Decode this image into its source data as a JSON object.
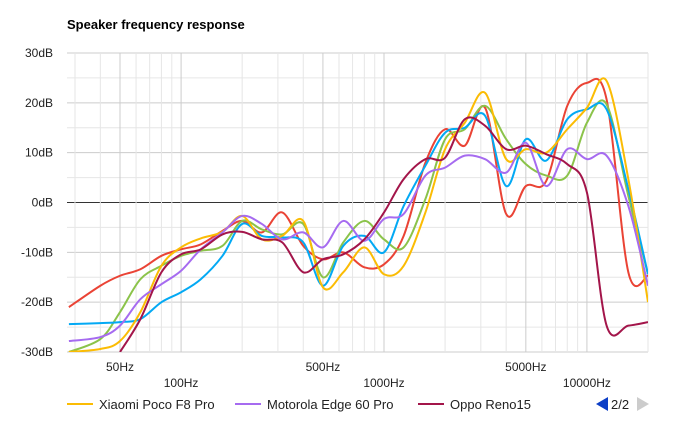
{
  "chart_data": {
    "type": "line",
    "title": "Speaker frequency response",
    "xlabel": "",
    "ylabel": "",
    "xscale": "log",
    "xlim": [
      27.4,
      20000
    ],
    "ylim": [
      -30,
      30
    ],
    "grid": true,
    "y_ticks": [
      {
        "value": 30,
        "label": "30dB"
      },
      {
        "value": 20,
        "label": "20dB"
      },
      {
        "value": 10,
        "label": "10dB"
      },
      {
        "value": 0,
        "label": "0dB"
      },
      {
        "value": -10,
        "label": "-10dB"
      },
      {
        "value": -20,
        "label": "-20dB"
      },
      {
        "value": -30,
        "label": "-30dB"
      }
    ],
    "x_ticks": [
      {
        "value": 50,
        "label": "50Hz",
        "row": 1
      },
      {
        "value": 100,
        "label": "100Hz",
        "row": 2
      },
      {
        "value": 500,
        "label": "500Hz",
        "row": 1
      },
      {
        "value": 1000,
        "label": "1000Hz",
        "row": 2
      },
      {
        "value": 5000,
        "label": "5000Hz",
        "row": 1
      },
      {
        "value": 10000,
        "label": "10000Hz",
        "row": 2
      }
    ],
    "x": [
      28,
      40,
      50,
      63,
      80,
      100,
      125,
      160,
      200,
      250,
      315,
      400,
      500,
      630,
      800,
      1000,
      1250,
      1600,
      2000,
      2500,
      3150,
      4000,
      5000,
      6300,
      8000,
      10000,
      12500,
      16000,
      20000
    ],
    "series": [
      {
        "name": "",
        "color": "#ea4335",
        "values": [
          -21,
          -16.7,
          -14.7,
          -13.4,
          -10.7,
          -9.4,
          -8.4,
          -5.7,
          -3.7,
          -6,
          -2,
          -8.7,
          -11.4,
          -10,
          -13,
          -12.4,
          -6.7,
          8,
          14.7,
          11.4,
          19,
          -2.3,
          3.3,
          4.3,
          19.4,
          24,
          20.7,
          -14,
          -14.7
        ]
      },
      {
        "name": "",
        "color": "#8bc34a",
        "values": [
          -30,
          -27.4,
          -22,
          -15.4,
          -12.7,
          -10.7,
          -9.7,
          -8.7,
          -3.7,
          -5.4,
          -6.4,
          -4.3,
          -15,
          -8,
          -3.7,
          -7.4,
          -9,
          0.7,
          12.7,
          14.7,
          19.4,
          12.7,
          7.7,
          5.4,
          5.4,
          16,
          19.7,
          1.3,
          -14.4
        ]
      },
      {
        "name": "",
        "color": "#03a9f4",
        "values": [
          -24.4,
          -24.2,
          -24,
          -23.4,
          -20,
          -18,
          -15.4,
          -10.7,
          -4.3,
          -6.7,
          -7,
          -8,
          -16.7,
          -8.7,
          -6.7,
          -10,
          -0.7,
          7.4,
          14,
          15,
          17.4,
          3.3,
          12.7,
          8.4,
          16.7,
          18.7,
          18.7,
          2.7,
          -14.4
        ]
      },
      {
        "name": "Xiaomi Poco F8 Pro",
        "color": "#fbbc04",
        "values": [
          -30,
          -29.4,
          -27.8,
          -22,
          -12.7,
          -9,
          -7.2,
          -5.9,
          -2.7,
          -7.4,
          -6.7,
          -3.7,
          -17,
          -14,
          -9,
          -14.4,
          -12.7,
          -2,
          10.7,
          16,
          22,
          8.7,
          10.7,
          10,
          14.7,
          19,
          24.4,
          4.7,
          -20
        ]
      },
      {
        "name": "Motorola Edge 60 Pro",
        "color": "#a66bf0",
        "values": [
          -27.8,
          -27,
          -24.7,
          -19.4,
          -16.4,
          -13.7,
          -9.4,
          -6,
          -2.7,
          -4.3,
          -7.4,
          -6,
          -9,
          -3.7,
          -7.7,
          -3.3,
          -2.3,
          5.4,
          7,
          9.4,
          8.7,
          6,
          12,
          3.3,
          10.7,
          8.7,
          9.4,
          -0.7,
          -16.7
        ]
      },
      {
        "name": "Oppo Reno15",
        "color": "#a3154a",
        "values": [
          null,
          null,
          -30,
          -23.4,
          -14,
          -10.4,
          -9.4,
          -6.4,
          -5.9,
          -7.4,
          -8,
          -14,
          -11.4,
          -10.4,
          -7.4,
          -2,
          4.7,
          8.7,
          9,
          16.7,
          15.4,
          10.7,
          11.4,
          9.7,
          7.7,
          2,
          -24.7,
          -24.7,
          -24
        ]
      }
    ],
    "legend": {
      "placement": "bottom",
      "page": "2/2"
    }
  }
}
